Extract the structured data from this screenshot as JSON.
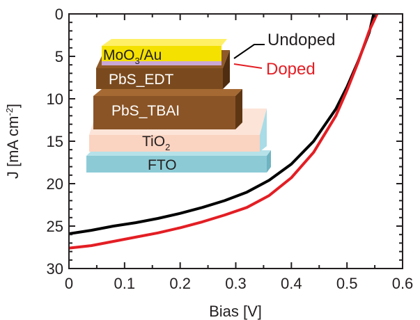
{
  "chart_data": {
    "type": "line",
    "xlabel": "Bias [V]",
    "ylabel_parts": {
      "main": "J [mA cm",
      "sup": "-2",
      "end": "]"
    },
    "xlim": [
      0,
      0.6
    ],
    "ylim": [
      0,
      30
    ],
    "y_inverted": true,
    "x_ticks": [
      "0",
      "0.1",
      "0.2",
      "0.3",
      "0.4",
      "0.5",
      "0.6"
    ],
    "y_ticks": [
      "0",
      "5",
      "10",
      "15",
      "20",
      "25",
      "30"
    ],
    "grid": false,
    "series": [
      {
        "name": "Undoped",
        "color": "#000000",
        "x": [
          0,
          0.04,
          0.08,
          0.12,
          0.16,
          0.2,
          0.24,
          0.28,
          0.32,
          0.36,
          0.4,
          0.44,
          0.48,
          0.5,
          0.52,
          0.54,
          0.548
        ],
        "y": [
          25.9,
          25.5,
          25.0,
          24.6,
          24.1,
          23.5,
          22.8,
          22.0,
          21.0,
          19.6,
          17.7,
          15.0,
          11.2,
          8.6,
          5.6,
          2.2,
          0
        ]
      },
      {
        "name": "Doped",
        "color": "#e31e24",
        "x": [
          0,
          0.04,
          0.08,
          0.12,
          0.16,
          0.2,
          0.24,
          0.28,
          0.32,
          0.36,
          0.4,
          0.44,
          0.48,
          0.5,
          0.52,
          0.54,
          0.554
        ],
        "y": [
          27.6,
          27.3,
          26.8,
          26.3,
          25.8,
          25.2,
          24.5,
          23.7,
          22.8,
          21.4,
          19.3,
          16.3,
          12.0,
          9.0,
          5.7,
          2.0,
          0
        ]
      }
    ],
    "inset_layers": [
      {
        "label": "MoO",
        "sub": "3",
        "suffix": "/Au",
        "color": "#f4e100",
        "label_color": "#231f20"
      },
      {
        "label": "PbS_EDT",
        "color": "#7a4a1e",
        "label_color": "#ffffff"
      },
      {
        "label": "PbS_TBAI",
        "color": "#8a5426",
        "label_color": "#ffffff"
      },
      {
        "label": "TiO",
        "sub": "2",
        "color": "#fbd3c1",
        "label_color": "#231f20"
      },
      {
        "label": "FTO",
        "color": "#8ccbd6",
        "label_color": "#231f20"
      }
    ]
  }
}
